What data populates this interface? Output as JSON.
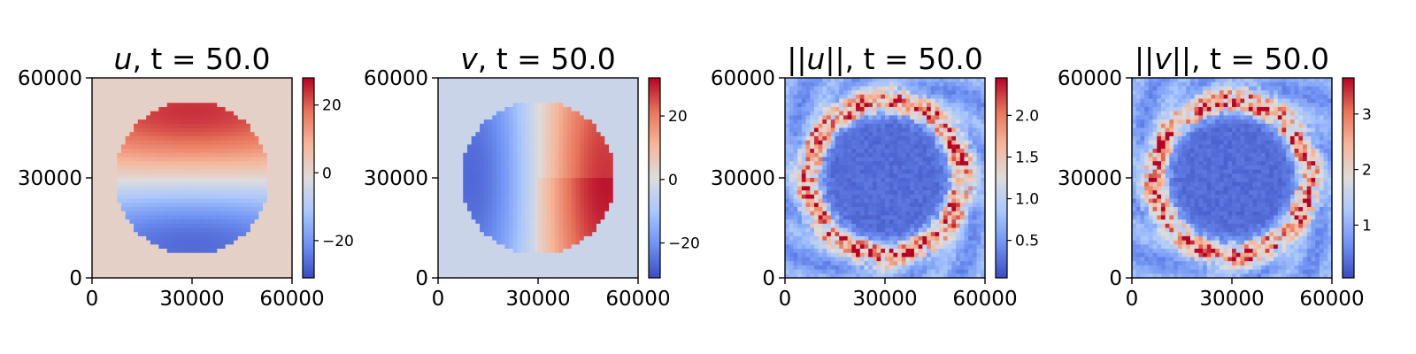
{
  "colormap": {
    "name": "coolwarm",
    "stops": [
      "#3b4cc0",
      "#6f91f2",
      "#aac7fd",
      "#dddcdc",
      "#f6b69a",
      "#e7745b",
      "#b40426"
    ]
  },
  "chart_data": [
    {
      "type": "heatmap",
      "field": "u",
      "title_var": "u",
      "title_time": "t = 50.0",
      "pattern": "vortex-u",
      "xlim": [
        0,
        60000
      ],
      "ylim": [
        0,
        60000
      ],
      "xticks": [
        "0",
        "30000",
        "60000"
      ],
      "yticks": [
        "0",
        "30000",
        "60000"
      ],
      "grid_size": 48,
      "colorbar": {
        "vmin": -31,
        "vmax": 28,
        "ticks": [
          -20,
          0,
          20
        ],
        "tick_labels": [
          "−20",
          "0",
          "20"
        ]
      }
    },
    {
      "type": "heatmap",
      "field": "v",
      "title_var": "v",
      "title_time": "t = 50.0",
      "pattern": "vortex-v",
      "xlim": [
        0,
        60000
      ],
      "ylim": [
        0,
        60000
      ],
      "xticks": [
        "0",
        "30000",
        "60000"
      ],
      "yticks": [
        "0",
        "30000",
        "60000"
      ],
      "grid_size": 48,
      "colorbar": {
        "vmin": -31,
        "vmax": 32,
        "ticks": [
          -20,
          0,
          20
        ],
        "tick_labels": [
          "−20",
          "0",
          "20"
        ]
      }
    },
    {
      "type": "heatmap",
      "field": "||u||",
      "title_var": "||u||",
      "title_time": "t = 50.0",
      "pattern": "ring-error",
      "xlim": [
        0,
        60000
      ],
      "ylim": [
        0,
        60000
      ],
      "xticks": [
        "0",
        "30000",
        "60000"
      ],
      "yticks": [
        "0",
        "30000",
        "60000"
      ],
      "grid_size": 48,
      "colorbar": {
        "vmin": 0.05,
        "vmax": 2.45,
        "ticks": [
          0.5,
          1.0,
          1.5,
          2.0
        ],
        "tick_labels": [
          "0.5",
          "1.0",
          "1.5",
          "2.0"
        ]
      }
    },
    {
      "type": "heatmap",
      "field": "||v||",
      "title_var": "||v||",
      "title_time": "t = 50.0",
      "pattern": "ring-error",
      "xlim": [
        0,
        60000
      ],
      "ylim": [
        0,
        60000
      ],
      "xticks": [
        "0",
        "30000",
        "60000"
      ],
      "yticks": [
        "0",
        "30000",
        "60000"
      ],
      "grid_size": 48,
      "colorbar": {
        "vmin": 0.05,
        "vmax": 3.65,
        "ticks": [
          1,
          2,
          3
        ],
        "tick_labels": [
          "1",
          "2",
          "3"
        ]
      }
    }
  ]
}
